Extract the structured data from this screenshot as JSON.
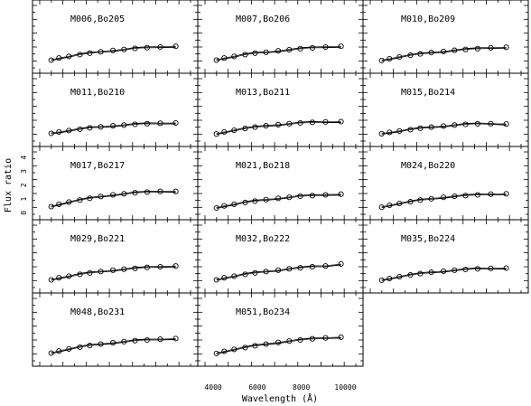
{
  "chart_data": {
    "type": "line",
    "xlabel": "Wavelength (Å)",
    "ylabel": "Flux ratio",
    "x_ticks": [
      4000,
      6000,
      8000,
      10000
    ],
    "y_ticks": [
      0,
      1,
      2,
      3,
      4
    ],
    "xlim": [
      3300,
      10800
    ],
    "ylim": [
      -0.5,
      4.8
    ],
    "x": [
      4150,
      4500,
      4950,
      5450,
      5900,
      6400,
      6950,
      7450,
      7950,
      8500,
      9100,
      9800
    ],
    "panels": [
      {
        "name": "M006,Bo205",
        "y": [
          0.45,
          0.6,
          0.72,
          0.85,
          0.95,
          1.05,
          1.15,
          1.22,
          1.3,
          1.35,
          1.4,
          1.45
        ]
      },
      {
        "name": "M007,Bo206",
        "y": [
          0.45,
          0.6,
          0.72,
          0.85,
          0.95,
          1.02,
          1.12,
          1.2,
          1.28,
          1.34,
          1.4,
          1.45
        ]
      },
      {
        "name": "M010,Bo209",
        "y": [
          0.42,
          0.55,
          0.68,
          0.8,
          0.9,
          1.0,
          1.08,
          1.16,
          1.22,
          1.28,
          1.34,
          1.38
        ]
      },
      {
        "name": "M011,Bo210",
        "y": [
          0.45,
          0.55,
          0.65,
          0.75,
          0.85,
          0.92,
          1.0,
          1.05,
          1.1,
          1.15,
          1.18,
          1.2
        ]
      },
      {
        "name": "M013,Bo211",
        "y": [
          0.4,
          0.55,
          0.68,
          0.8,
          0.9,
          1.0,
          1.08,
          1.15,
          1.2,
          1.25,
          1.28,
          1.3
        ]
      },
      {
        "name": "M015,Bo214",
        "y": [
          0.42,
          0.52,
          0.62,
          0.72,
          0.82,
          0.9,
          0.98,
          1.05,
          1.1,
          1.14,
          1.15,
          1.12
        ]
      },
      {
        "name": "M017,Bo217",
        "y": [
          0.45,
          0.62,
          0.78,
          0.92,
          1.05,
          1.18,
          1.3,
          1.38,
          1.45,
          1.5,
          1.55,
          1.55
        ]
      },
      {
        "name": "M021,Bo218",
        "y": [
          0.35,
          0.5,
          0.62,
          0.75,
          0.85,
          0.95,
          1.05,
          1.12,
          1.2,
          1.25,
          1.3,
          1.35
        ]
      },
      {
        "name": "M024,Bo220",
        "y": [
          0.4,
          0.55,
          0.68,
          0.8,
          0.92,
          1.02,
          1.12,
          1.2,
          1.25,
          1.3,
          1.35,
          1.38
        ]
      },
      {
        "name": "M029,Bo221",
        "y": [
          0.45,
          0.6,
          0.72,
          0.85,
          0.95,
          1.05,
          1.15,
          1.22,
          1.28,
          1.35,
          1.4,
          1.45
        ]
      },
      {
        "name": "M032,Bo222",
        "y": [
          0.45,
          0.6,
          0.72,
          0.85,
          0.95,
          1.05,
          1.15,
          1.25,
          1.32,
          1.4,
          1.45,
          1.6
        ]
      },
      {
        "name": "M035,Bo224",
        "y": [
          0.42,
          0.55,
          0.68,
          0.8,
          0.9,
          1.0,
          1.08,
          1.15,
          1.2,
          1.25,
          1.28,
          1.3
        ]
      },
      {
        "name": "M048,Bo231",
        "y": [
          0.45,
          0.6,
          0.75,
          0.88,
          1.0,
          1.1,
          1.2,
          1.28,
          1.35,
          1.4,
          1.45,
          1.5
        ]
      },
      {
        "name": "M051,Bo234",
        "y": [
          0.42,
          0.58,
          0.72,
          0.85,
          0.98,
          1.1,
          1.22,
          1.32,
          1.4,
          1.48,
          1.55,
          1.6
        ]
      }
    ]
  }
}
